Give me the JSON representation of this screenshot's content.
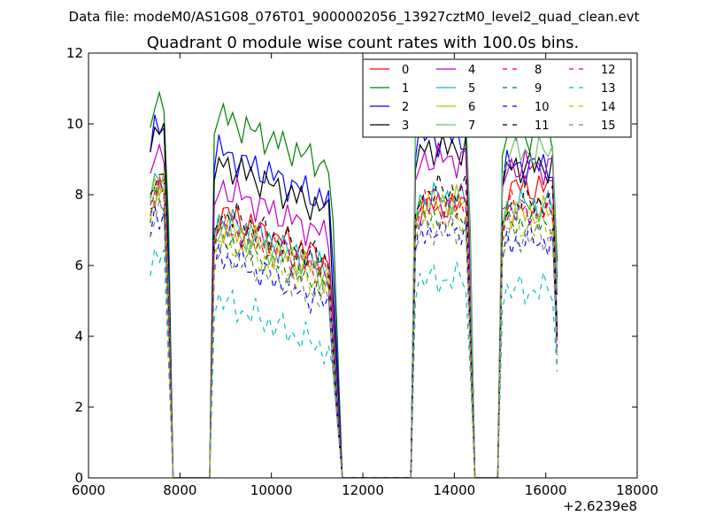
{
  "figure": {
    "suptitle": "Data file: modeM0/AS1G08_076T01_9000002056_13927cztM0_level2_quad_clean.evt"
  },
  "chart_data": {
    "type": "line",
    "title": "Quadrant 0 module wise count rates with 100.0s bins.",
    "xlabel": "",
    "ylabel": "",
    "xlim": [
      6000,
      18000
    ],
    "ylim": [
      0,
      12
    ],
    "x_offset_label": "+2.6239e8",
    "xticks": [
      "6000",
      "8000",
      "10000",
      "12000",
      "14000",
      "16000",
      "18000"
    ],
    "yticks": [
      "0",
      "2",
      "4",
      "6",
      "8",
      "10",
      "12"
    ],
    "grid": false,
    "legend": {
      "location": "upper right",
      "columns": 4
    },
    "segments": [
      {
        "x_start": 7350,
        "n": 5
      },
      {
        "x_start": 8750,
        "n": 27
      },
      {
        "x_start": 13150,
        "n": 13
      },
      {
        "x_start": 15050,
        "n": 13
      }
    ],
    "gaps": [
      {
        "x": [
          7850,
          7950,
          8650
        ],
        "y": [
          0,
          0,
          0
        ]
      },
      {
        "x": [
          11550,
          12000,
          13050
        ],
        "y": [
          0,
          0,
          0
        ]
      },
      {
        "x": [
          14450,
          14950
        ],
        "y": [
          0,
          0
        ]
      }
    ],
    "series": [
      {
        "name": "0",
        "color": "#ff0000",
        "dash": "solid",
        "base": [
          8.2,
          7.8,
          7.6,
          7.7,
          8.2
        ]
      },
      {
        "name": "1",
        "color": "#008000",
        "dash": "solid",
        "base": [
          10.5,
          10.9,
          10.3,
          10.6,
          9.7
        ]
      },
      {
        "name": "2",
        "color": "#0000ff",
        "dash": "solid",
        "base": [
          9.8,
          9.8,
          9.3,
          9.6,
          8.8
        ]
      },
      {
        "name": "3",
        "color": "#000000",
        "dash": "solid",
        "base": [
          9.8,
          9.4,
          9.0,
          9.3,
          8.8
        ]
      },
      {
        "name": "4",
        "color": "#bf00bf",
        "dash": "solid",
        "base": [
          9.2,
          9.2,
          8.3,
          9.0,
          8.8
        ]
      },
      {
        "name": "5",
        "color": "#00bfbf",
        "dash": "solid",
        "base": [
          8.5,
          8.3,
          7.4,
          7.9,
          7.7
        ]
      },
      {
        "name": "6",
        "color": "#bfbf00",
        "dash": "solid",
        "base": [
          8.4,
          8.0,
          7.2,
          7.8,
          7.5
        ]
      },
      {
        "name": "7",
        "color": "#6cbf6c",
        "dash": "solid",
        "base": [
          8.1,
          7.8,
          7.2,
          10.5,
          9.2
        ]
      },
      {
        "name": "8",
        "color": "#ff0000",
        "dash": "dashed",
        "base": [
          8.0,
          7.6,
          7.2,
          7.6,
          7.6
        ]
      },
      {
        "name": "9",
        "color": "#008000",
        "dash": "dashed",
        "base": [
          7.8,
          7.3,
          6.9,
          7.4,
          7.2
        ]
      },
      {
        "name": "10",
        "color": "#0000ff",
        "dash": "dashed",
        "base": [
          7.4,
          6.9,
          6.4,
          7.0,
          6.7
        ]
      },
      {
        "name": "11",
        "color": "#000000",
        "dash": "dashed",
        "base": [
          8.6,
          8.2,
          7.6,
          8.1,
          7.8
        ]
      },
      {
        "name": "12",
        "color": "#bf00bf",
        "dash": "dashed",
        "base": [
          8.3,
          7.9,
          7.3,
          7.8,
          7.5
        ]
      },
      {
        "name": "13",
        "color": "#00bfbf",
        "dash": "dashed",
        "base": [
          6.3,
          5.9,
          5.1,
          5.6,
          5.3
        ]
      },
      {
        "name": "14",
        "color": "#bfbf00",
        "dash": "dashed",
        "base": [
          7.9,
          7.5,
          6.8,
          7.3,
          7.1
        ]
      },
      {
        "name": "15",
        "color": "#808080",
        "dash": "dashed",
        "base": [
          7.4,
          7.1,
          6.5,
          7.0,
          6.8
        ]
      }
    ]
  }
}
